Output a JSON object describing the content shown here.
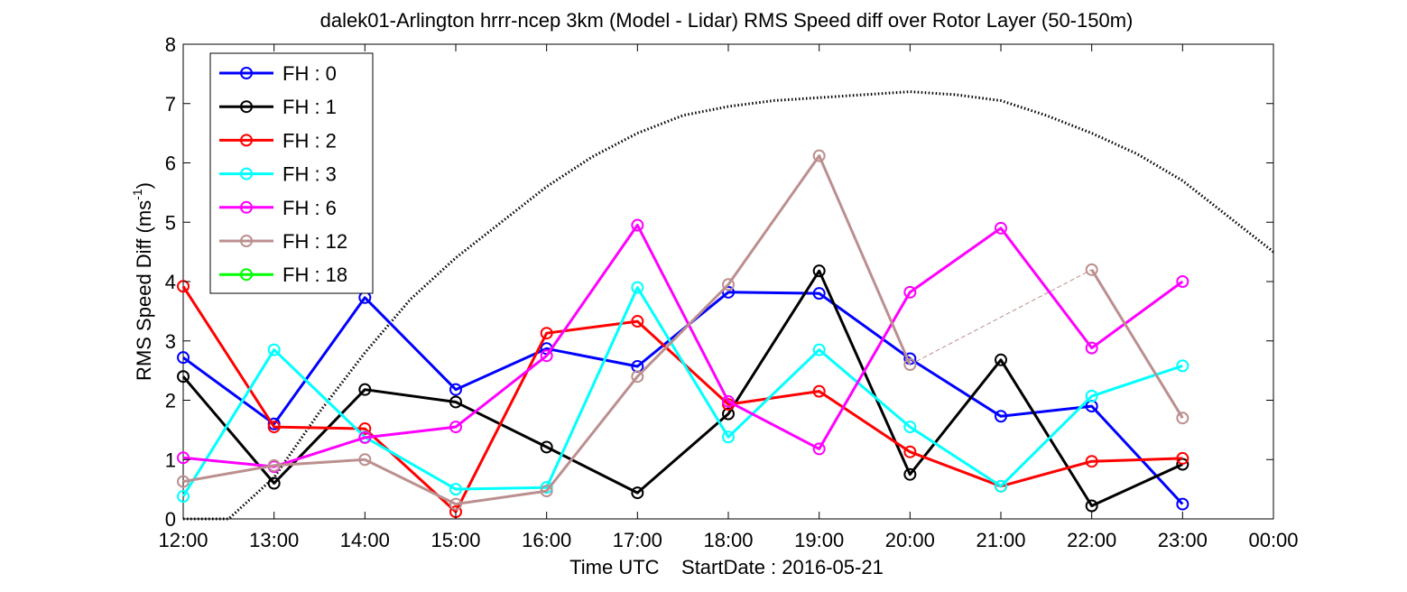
{
  "chart_data": {
    "type": "line",
    "title": "dalek01-Arlington hrrr-ncep 3km (Model - Lidar) RMS Speed diff over Rotor Layer (50-150m)",
    "xlabel": "Time UTC    StartDate : 2016-05-21",
    "ylabel_main": "RMS Speed Diff (ms",
    "ylabel_sup": "-1",
    "ylabel_close": ")",
    "x_ticks": [
      "12:00",
      "13:00",
      "14:00",
      "15:00",
      "16:00",
      "17:00",
      "18:00",
      "19:00",
      "20:00",
      "21:00",
      "22:00",
      "23:00",
      "00:00"
    ],
    "y_ticks": [
      "0",
      "1",
      "2",
      "3",
      "4",
      "5",
      "6",
      "7",
      "8"
    ],
    "xlim": [
      0,
      12
    ],
    "ylim": [
      0,
      8
    ],
    "grid": false,
    "legend_position": "top-left",
    "series": [
      {
        "name": "FH : 0",
        "color": "#0000ff",
        "points": [
          [
            0,
            2.72
          ],
          [
            1,
            1.6
          ],
          [
            2,
            3.73
          ],
          [
            3,
            2.18
          ],
          [
            4,
            2.87
          ],
          [
            5,
            2.57
          ],
          [
            6,
            3.82
          ],
          [
            7,
            3.8
          ],
          [
            8,
            2.7
          ],
          [
            9,
            1.73
          ],
          [
            10,
            1.9
          ],
          [
            11,
            0.25
          ]
        ],
        "gaps": []
      },
      {
        "name": "FH : 1",
        "color": "#000000",
        "points": [
          [
            0,
            2.4
          ],
          [
            1,
            0.6
          ],
          [
            2,
            2.18
          ],
          [
            3,
            1.97
          ],
          [
            4,
            1.21
          ],
          [
            5,
            0.44
          ],
          [
            6,
            1.77
          ],
          [
            7,
            4.18
          ],
          [
            8,
            0.75
          ],
          [
            9,
            2.68
          ],
          [
            10,
            0.22
          ],
          [
            11,
            0.92
          ]
        ],
        "gaps": []
      },
      {
        "name": "FH : 2",
        "color": "#ff0000",
        "points": [
          [
            0,
            3.92
          ],
          [
            1,
            1.55
          ],
          [
            2,
            1.52
          ],
          [
            3,
            0.12
          ],
          [
            4,
            3.13
          ],
          [
            5,
            3.33
          ],
          [
            6,
            1.93
          ],
          [
            7,
            2.15
          ],
          [
            8,
            1.13
          ],
          [
            9,
            0.55
          ],
          [
            10,
            0.97
          ],
          [
            11,
            1.02
          ]
        ],
        "gaps": []
      },
      {
        "name": "FH : 3",
        "color": "#00ffff",
        "points": [
          [
            0,
            0.38
          ],
          [
            1,
            2.85
          ],
          [
            2,
            1.38
          ],
          [
            3,
            0.5
          ],
          [
            4,
            0.53
          ],
          [
            5,
            3.9
          ],
          [
            6,
            1.38
          ],
          [
            7,
            2.85
          ],
          [
            8,
            1.55
          ],
          [
            9,
            0.55
          ],
          [
            10,
            2.07
          ],
          [
            11,
            2.58
          ]
        ],
        "gaps": []
      },
      {
        "name": "FH : 6",
        "color": "#ff00ff",
        "points": [
          [
            0,
            1.03
          ],
          [
            1,
            0.88
          ],
          [
            2,
            1.37
          ],
          [
            3,
            1.55
          ],
          [
            4,
            2.75
          ],
          [
            5,
            4.95
          ],
          [
            6,
            1.98
          ],
          [
            7,
            1.18
          ],
          [
            8,
            3.82
          ],
          [
            9,
            4.9
          ],
          [
            10,
            2.88
          ],
          [
            11,
            4.0
          ]
        ],
        "gaps": []
      },
      {
        "name": "FH : 12",
        "color": "#bc8f8f",
        "points": [
          [
            0,
            0.63
          ],
          [
            1,
            0.9
          ],
          [
            2,
            1.0
          ],
          [
            3,
            0.25
          ],
          [
            4,
            0.47
          ],
          [
            5,
            2.4
          ],
          [
            6,
            3.95
          ],
          [
            7,
            6.12
          ],
          [
            8,
            2.6
          ],
          [
            10,
            4.2
          ],
          [
            11,
            1.7
          ]
        ],
        "gaps": [
          [
            8,
            10
          ]
        ]
      },
      {
        "name": "FH : 18",
        "color": "#00ff00",
        "points": [],
        "gaps": []
      }
    ],
    "reference_curve": {
      "color": "#000000",
      "style": "dotted",
      "points": [
        [
          0,
          0
        ],
        [
          0.5,
          0
        ],
        [
          1,
          0.7
        ],
        [
          1.5,
          1.8
        ],
        [
          2,
          2.8
        ],
        [
          2.5,
          3.7
        ],
        [
          3,
          4.4
        ],
        [
          3.5,
          5.0
        ],
        [
          4,
          5.6
        ],
        [
          4.5,
          6.1
        ],
        [
          5,
          6.5
        ],
        [
          5.5,
          6.8
        ],
        [
          6,
          6.95
        ],
        [
          6.5,
          7.05
        ],
        [
          7,
          7.1
        ],
        [
          7.5,
          7.15
        ],
        [
          8,
          7.2
        ],
        [
          8.5,
          7.15
        ],
        [
          9,
          7.05
        ],
        [
          9.5,
          6.8
        ],
        [
          10,
          6.5
        ],
        [
          10.5,
          6.15
        ],
        [
          11,
          5.7
        ],
        [
          11.5,
          5.1
        ],
        [
          12,
          4.5
        ]
      ]
    }
  }
}
